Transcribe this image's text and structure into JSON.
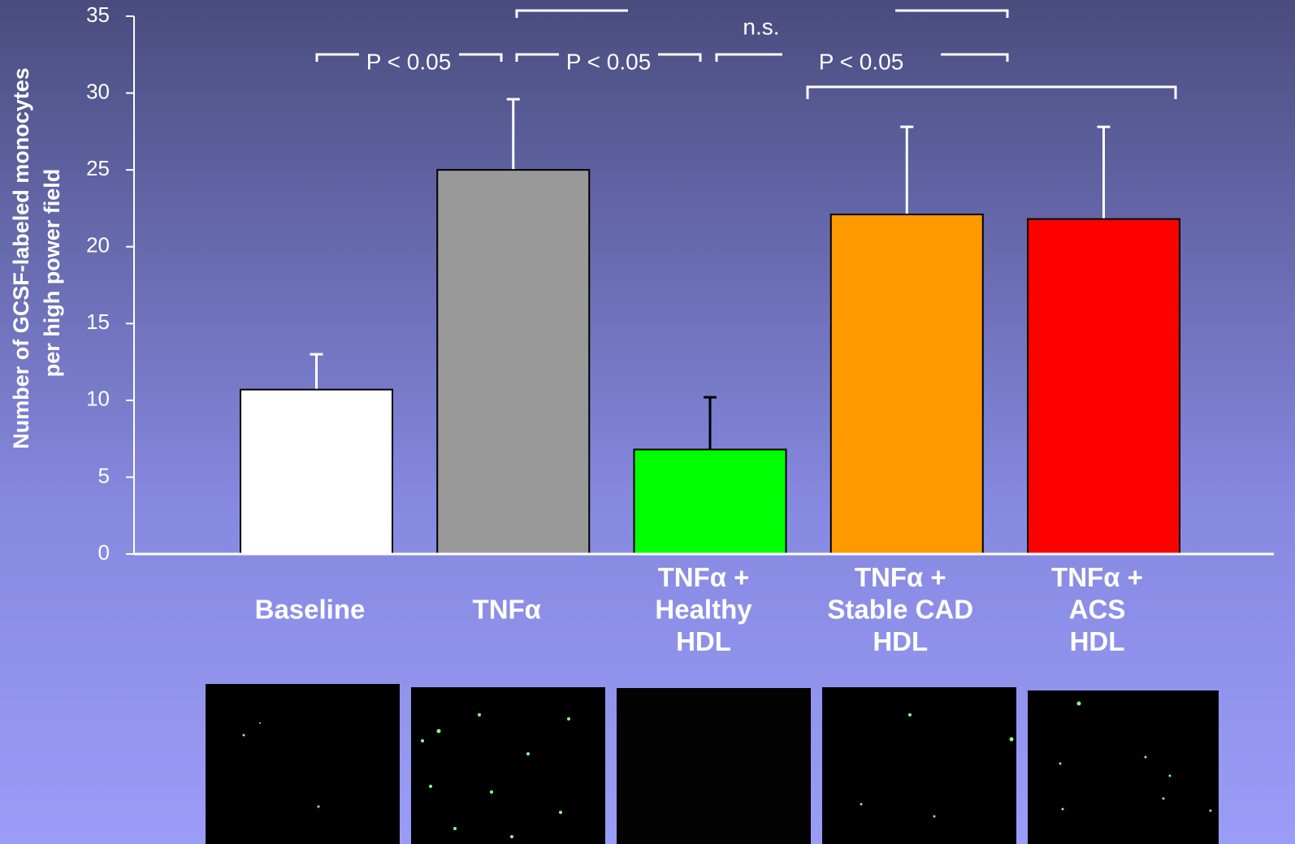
{
  "chart_data": {
    "type": "bar",
    "y_label": [
      "Number of GCSF-labeled monocytes",
      "per high power field"
    ],
    "categories": [
      [
        "Baseline"
      ],
      [
        "TNFα"
      ],
      [
        "TNFα +",
        "Healthy",
        "HDL"
      ],
      [
        "TNFα +",
        "Stable CAD",
        "HDL"
      ],
      [
        "TNFα +",
        "ACS",
        "HDL"
      ]
    ],
    "values": [
      10.7,
      25,
      6.8,
      22.1,
      21.8
    ],
    "errors": [
      2.3,
      4.6,
      3.4,
      5.7,
      6.0
    ],
    "colors": [
      "#ffffff",
      "#999999",
      "#00ff00",
      "#ff9900",
      "#ff0000"
    ],
    "error_colors": [
      "#ffffff",
      "#ffffff",
      "#000000",
      "#ffffff",
      "#ffffff"
    ],
    "ylim": [
      0,
      35
    ],
    "yticks": [
      0,
      5,
      10,
      15,
      20,
      25,
      30,
      35
    ],
    "annotations": [
      "P < 0.05",
      "P < 0.05",
      "n.s.",
      "P < 0.05"
    ]
  }
}
